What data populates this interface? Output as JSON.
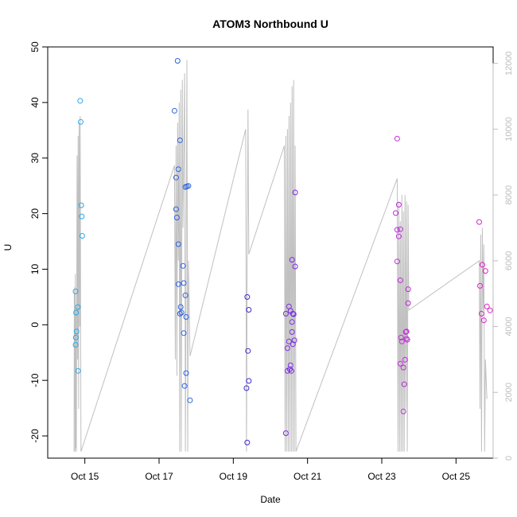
{
  "chart_data": {
    "type": "scatter",
    "title": "ATOM3 Northbound U",
    "xlabel": "Date",
    "ylabel": "U",
    "xlim": [
      "Oct 14",
      "Oct 26"
    ],
    "ylim": [
      -24,
      50
    ],
    "y2lim": [
      0,
      12500
    ],
    "x_ticks": [
      {
        "date": "Oct 15",
        "label": "Oct 15"
      },
      {
        "date": "Oct 17",
        "label": "Oct 17"
      },
      {
        "date": "Oct 19",
        "label": "Oct 19"
      },
      {
        "date": "Oct 21",
        "label": "Oct 21"
      },
      {
        "date": "Oct 23",
        "label": "Oct 23"
      },
      {
        "date": "Oct 25",
        "label": "Oct 25"
      }
    ],
    "y_ticks": [
      -20,
      -10,
      0,
      10,
      20,
      30,
      40,
      50
    ],
    "y2_ticks": [
      0,
      2000,
      4000,
      6000,
      8000,
      10000,
      12000
    ],
    "grid": false,
    "points": [
      {
        "t": "Oct 14 18:00",
        "y": 6.0,
        "color": "#29a8e8"
      },
      {
        "t": "Oct 14 18:20",
        "y": 2.2,
        "color": "#29a8e8"
      },
      {
        "t": "Oct 14 18:40",
        "y": -1.2,
        "color": "#29a8e8"
      },
      {
        "t": "Oct 14 18:10",
        "y": -2.3,
        "color": "#29a8e8"
      },
      {
        "t": "Oct 14 18:00",
        "y": -3.6,
        "color": "#29a8e8"
      },
      {
        "t": "Oct 14 19:30",
        "y": 3.2,
        "color": "#29a8e8"
      },
      {
        "t": "Oct 14 19:40",
        "y": -8.3,
        "color": "#29a8e8"
      },
      {
        "t": "Oct 14 21:00",
        "y": 40.3,
        "color": "#29a8e8"
      },
      {
        "t": "Oct 14 21:20",
        "y": 36.5,
        "color": "#29a8e8"
      },
      {
        "t": "Oct 14 21:40",
        "y": 21.5,
        "color": "#29a8e8"
      },
      {
        "t": "Oct 14 22:00",
        "y": 19.5,
        "color": "#29a8e8"
      },
      {
        "t": "Oct 14 22:20",
        "y": 16.0,
        "color": "#29a8e8"
      },
      {
        "t": "Oct 17 10:00",
        "y": 38.5,
        "color": "#2b62e0"
      },
      {
        "t": "Oct 17 12:00",
        "y": 47.5,
        "color": "#2b62e0"
      },
      {
        "t": "Oct 17 11:00",
        "y": 26.5,
        "color": "#2b62e0"
      },
      {
        "t": "Oct 17 12:30",
        "y": 28.0,
        "color": "#2b62e0"
      },
      {
        "t": "Oct 17 13:30",
        "y": 33.2,
        "color": "#2b62e0"
      },
      {
        "t": "Oct 17 11:00",
        "y": 20.8,
        "color": "#2b62e0"
      },
      {
        "t": "Oct 17 11:30",
        "y": 19.3,
        "color": "#2b62e0"
      },
      {
        "t": "Oct 17 12:30",
        "y": 14.5,
        "color": "#2b62e0"
      },
      {
        "t": "Oct 17 15:30",
        "y": 10.6,
        "color": "#2b62e0"
      },
      {
        "t": "Oct 17 12:30",
        "y": 7.3,
        "color": "#2b62e0"
      },
      {
        "t": "Oct 17 16:00",
        "y": 7.5,
        "color": "#2b62e0"
      },
      {
        "t": "Oct 17 17:00",
        "y": 5.3,
        "color": "#2b62e0"
      },
      {
        "t": "Oct 17 14:00",
        "y": 3.2,
        "color": "#2b62e0"
      },
      {
        "t": "Oct 17 13:30",
        "y": 2.0,
        "color": "#2b62e0"
      },
      {
        "t": "Oct 17 14:30",
        "y": 2.2,
        "color": "#2b62e0"
      },
      {
        "t": "Oct 17 17:30",
        "y": 1.4,
        "color": "#2b62e0"
      },
      {
        "t": "Oct 17 16:00",
        "y": -1.5,
        "color": "#2b62e0"
      },
      {
        "t": "Oct 17 17:00",
        "y": 24.8,
        "color": "#2b62e0"
      },
      {
        "t": "Oct 17 18:00",
        "y": 24.9,
        "color": "#2b62e0"
      },
      {
        "t": "Oct 17 19:00",
        "y": 25.0,
        "color": "#2b62e0"
      },
      {
        "t": "Oct 17 17:30",
        "y": -8.7,
        "color": "#2b62e0"
      },
      {
        "t": "Oct 17 16:30",
        "y": -11.0,
        "color": "#2b62e0"
      },
      {
        "t": "Oct 17 20:00",
        "y": -13.6,
        "color": "#2b62e0"
      },
      {
        "t": "Oct 19 09:00",
        "y": 5.0,
        "color": "#3b2bd0"
      },
      {
        "t": "Oct 19 10:00",
        "y": 2.7,
        "color": "#3b2bd0"
      },
      {
        "t": "Oct 19 09:30",
        "y": -4.7,
        "color": "#3b2bd0"
      },
      {
        "t": "Oct 19 10:00",
        "y": -10.1,
        "color": "#3b2bd0"
      },
      {
        "t": "Oct 19 08:30",
        "y": -11.4,
        "color": "#3b2bd0"
      },
      {
        "t": "Oct 19 09:00",
        "y": -21.2,
        "color": "#3b2bd0"
      },
      {
        "t": "Oct 20 10:00",
        "y": 2.0,
        "color": "#7a2be0"
      },
      {
        "t": "Oct 20 12:00",
        "y": 3.3,
        "color": "#7a2be0"
      },
      {
        "t": "Oct 20 11:00",
        "y": -4.2,
        "color": "#7a2be0"
      },
      {
        "t": "Oct 20 12:00",
        "y": -3.0,
        "color": "#7a2be0"
      },
      {
        "t": "Oct 20 11:00",
        "y": -8.3,
        "color": "#7a2be0"
      },
      {
        "t": "Oct 20 13:00",
        "y": -7.3,
        "color": "#7a2be0"
      },
      {
        "t": "Oct 20 13:30",
        "y": -8.3,
        "color": "#7a2be0"
      },
      {
        "t": "Oct 20 12:30",
        "y": -8.0,
        "color": "#7a2be0"
      },
      {
        "t": "Oct 20 10:00",
        "y": -19.5,
        "color": "#7a2be0"
      },
      {
        "t": "Oct 20 14:00",
        "y": 11.7,
        "color": "#7a2be0"
      },
      {
        "t": "Oct 20 16:00",
        "y": 10.5,
        "color": "#7a2be0"
      },
      {
        "t": "Oct 20 16:00",
        "y": 23.8,
        "color": "#7a2be0"
      },
      {
        "t": "Oct 20 14:30",
        "y": 2.0,
        "color": "#7a2be0"
      },
      {
        "t": "Oct 20 13:00",
        "y": 2.5,
        "color": "#7a2be0"
      },
      {
        "t": "Oct 20 15:00",
        "y": 1.9,
        "color": "#7a2be0"
      },
      {
        "t": "Oct 20 14:00",
        "y": 0.5,
        "color": "#7a2be0"
      },
      {
        "t": "Oct 20 14:00",
        "y": -1.3,
        "color": "#7a2be0"
      },
      {
        "t": "Oct 20 15:30",
        "y": -2.8,
        "color": "#7a2be0"
      },
      {
        "t": "Oct 20 14:30",
        "y": -3.5,
        "color": "#7a2be0"
      },
      {
        "t": "Oct 23 10:00",
        "y": 33.5,
        "color": "#c02bd8"
      },
      {
        "t": "Oct 23 10:00",
        "y": 17.1,
        "color": "#c02bd8"
      },
      {
        "t": "Oct 23 11:00",
        "y": 21.6,
        "color": "#c02bd8"
      },
      {
        "t": "Oct 23 09:00",
        "y": 20.1,
        "color": "#c02bd8"
      },
      {
        "t": "Oct 23 12:00",
        "y": 17.2,
        "color": "#c02bd8"
      },
      {
        "t": "Oct 23 11:00",
        "y": 15.9,
        "color": "#c02bd8"
      },
      {
        "t": "Oct 23 10:00",
        "y": 11.4,
        "color": "#c02bd8"
      },
      {
        "t": "Oct 23 12:00",
        "y": 8.0,
        "color": "#c02bd8"
      },
      {
        "t": "Oct 23 17:00",
        "y": 6.4,
        "color": "#c02bd8"
      },
      {
        "t": "Oct 23 17:00",
        "y": 3.9,
        "color": "#c02bd8"
      },
      {
        "t": "Oct 23 16:00",
        "y": -1.2,
        "color": "#c02bd8"
      },
      {
        "t": "Oct 23 15:30",
        "y": -1.3,
        "color": "#c02bd8"
      },
      {
        "t": "Oct 23 12:30",
        "y": -2.3,
        "color": "#c02bd8"
      },
      {
        "t": "Oct 23 16:00",
        "y": -2.5,
        "color": "#c02bd8"
      },
      {
        "t": "Oct 23 16:30",
        "y": -2.7,
        "color": "#c02bd8"
      },
      {
        "t": "Oct 23 13:00",
        "y": -3.0,
        "color": "#c02bd8"
      },
      {
        "t": "Oct 23 15:00",
        "y": -6.3,
        "color": "#c02bd8"
      },
      {
        "t": "Oct 23 12:00",
        "y": -7.0,
        "color": "#c02bd8"
      },
      {
        "t": "Oct 23 14:00",
        "y": -7.7,
        "color": "#c02bd8"
      },
      {
        "t": "Oct 23 14:30",
        "y": -10.7,
        "color": "#c02bd8"
      },
      {
        "t": "Oct 23 14:00",
        "y": -15.6,
        "color": "#c02bd8"
      },
      {
        "t": "Oct 25 15:00",
        "y": 18.5,
        "color": "#e020c8"
      },
      {
        "t": "Oct 25 17:00",
        "y": 10.8,
        "color": "#e020c8"
      },
      {
        "t": "Oct 25 19:00",
        "y": 9.7,
        "color": "#e020c8"
      },
      {
        "t": "Oct 25 15:30",
        "y": 7.0,
        "color": "#e020c8"
      },
      {
        "t": "Oct 25 20:00",
        "y": 3.3,
        "color": "#e020c8"
      },
      {
        "t": "Oct 25 22:00",
        "y": 2.6,
        "color": "#e020c8"
      },
      {
        "t": "Oct 25 16:30",
        "y": 2.0,
        "color": "#e020c8"
      },
      {
        "t": "Oct 25 18:00",
        "y": 0.8,
        "color": "#e020c8"
      }
    ],
    "line": {
      "color": "#c0c0c0",
      "axis": "right",
      "points": [
        {
          "t": "Oct 14 17:00",
          "v": 200
        },
        {
          "t": "Oct 14 17:10",
          "v": 5000
        },
        {
          "t": "Oct 14 17:20",
          "v": 1500
        },
        {
          "t": "Oct 14 17:30",
          "v": 5200
        },
        {
          "t": "Oct 14 17:40",
          "v": 200
        },
        {
          "t": "Oct 14 17:50",
          "v": 5600
        },
        {
          "t": "Oct 14 18:00",
          "v": 300
        },
        {
          "t": "Oct 14 18:20",
          "v": 4500
        },
        {
          "t": "Oct 14 18:30",
          "v": 200
        },
        {
          "t": "Oct 14 19:00",
          "v": 9200
        },
        {
          "t": "Oct 14 19:20",
          "v": 3000
        },
        {
          "t": "Oct 14 19:40",
          "v": 9800
        },
        {
          "t": "Oct 14 20:00",
          "v": 1500
        },
        {
          "t": "Oct 14 20:20",
          "v": 10200
        },
        {
          "t": "Oct 14 20:40",
          "v": 4000
        },
        {
          "t": "Oct 14 21:00",
          "v": 10400
        },
        {
          "t": "Oct 14 21:30",
          "v": 200
        },
        {
          "t": "Oct 17 10:00",
          "v": 8900
        },
        {
          "t": "Oct 17 10:30",
          "v": 3000
        },
        {
          "t": "Oct 17 11:00",
          "v": 9500
        },
        {
          "t": "Oct 17 11:30",
          "v": 2500
        },
        {
          "t": "Oct 17 12:00",
          "v": 10200
        },
        {
          "t": "Oct 17 12:30",
          "v": 6000
        },
        {
          "t": "Oct 17 13:00",
          "v": 10800
        },
        {
          "t": "Oct 17 13:20",
          "v": 200
        },
        {
          "t": "Oct 17 14:00",
          "v": 11200
        },
        {
          "t": "Oct 17 14:20",
          "v": 200
        },
        {
          "t": "Oct 17 15:00",
          "v": 11500
        },
        {
          "t": "Oct 17 15:30",
          "v": 7000
        },
        {
          "t": "Oct 17 16:30",
          "v": 11700
        },
        {
          "t": "Oct 17 17:00",
          "v": 200
        },
        {
          "t": "Oct 17 18:00",
          "v": 12100
        },
        {
          "t": "Oct 17 18:30",
          "v": 200
        },
        {
          "t": "Oct 17 19:00",
          "v": 6000
        },
        {
          "t": "Oct 17 20:00",
          "v": 3100
        },
        {
          "t": "Oct 19 08:00",
          "v": 10000
        },
        {
          "t": "Oct 19 08:30",
          "v": 200
        },
        {
          "t": "Oct 19 09:00",
          "v": 6200
        },
        {
          "t": "Oct 19 09:30",
          "v": 10600
        },
        {
          "t": "Oct 19 10:00",
          "v": 6200
        },
        {
          "t": "Oct 20 09:00",
          "v": 9500
        },
        {
          "t": "Oct 20 09:30",
          "v": 200
        },
        {
          "t": "Oct 20 10:00",
          "v": 9800
        },
        {
          "t": "Oct 20 10:30",
          "v": 200
        },
        {
          "t": "Oct 20 11:00",
          "v": 10000
        },
        {
          "t": "Oct 20 11:30",
          "v": 200
        },
        {
          "t": "Oct 20 12:00",
          "v": 10400
        },
        {
          "t": "Oct 20 12:30",
          "v": 200
        },
        {
          "t": "Oct 20 13:00",
          "v": 10800
        },
        {
          "t": "Oct 20 13:30",
          "v": 200
        },
        {
          "t": "Oct 20 14:00",
          "v": 11300
        },
        {
          "t": "Oct 20 14:30",
          "v": 200
        },
        {
          "t": "Oct 20 15:00",
          "v": 11500
        },
        {
          "t": "Oct 20 15:30",
          "v": 200
        },
        {
          "t": "Oct 20 16:00",
          "v": 9500
        },
        {
          "t": "Oct 20 16:30",
          "v": 200
        },
        {
          "t": "Oct 23 10:00",
          "v": 8500
        },
        {
          "t": "Oct 23 10:30",
          "v": 200
        },
        {
          "t": "Oct 23 11:00",
          "v": 7800
        },
        {
          "t": "Oct 23 11:30",
          "v": 200
        },
        {
          "t": "Oct 23 12:00",
          "v": 7200
        },
        {
          "t": "Oct 23 12:30",
          "v": 200
        },
        {
          "t": "Oct 23 13:00",
          "v": 8000
        },
        {
          "t": "Oct 23 13:30",
          "v": 200
        },
        {
          "t": "Oct 23 14:00",
          "v": 7500
        },
        {
          "t": "Oct 23 14:30",
          "v": 200
        },
        {
          "t": "Oct 23 15:00",
          "v": 8000
        },
        {
          "t": "Oct 23 15:30",
          "v": 1500
        },
        {
          "t": "Oct 23 16:00",
          "v": 7800
        },
        {
          "t": "Oct 23 16:30",
          "v": 200
        },
        {
          "t": "Oct 23 17:00",
          "v": 7700
        },
        {
          "t": "Oct 23 17:30",
          "v": 4500
        },
        {
          "t": "Oct 25 15:00",
          "v": 6000
        },
        {
          "t": "Oct 25 15:30",
          "v": 1500
        },
        {
          "t": "Oct 25 16:00",
          "v": 6800
        },
        {
          "t": "Oct 25 16:30",
          "v": 200
        },
        {
          "t": "Oct 25 17:00",
          "v": 7000
        },
        {
          "t": "Oct 25 17:30",
          "v": 4500
        },
        {
          "t": "Oct 25 18:00",
          "v": 6500
        },
        {
          "t": "Oct 25 18:30",
          "v": 200
        },
        {
          "t": "Oct 25 19:00",
          "v": 3000
        },
        {
          "t": "Oct 25 20:00",
          "v": 1800
        }
      ]
    }
  }
}
